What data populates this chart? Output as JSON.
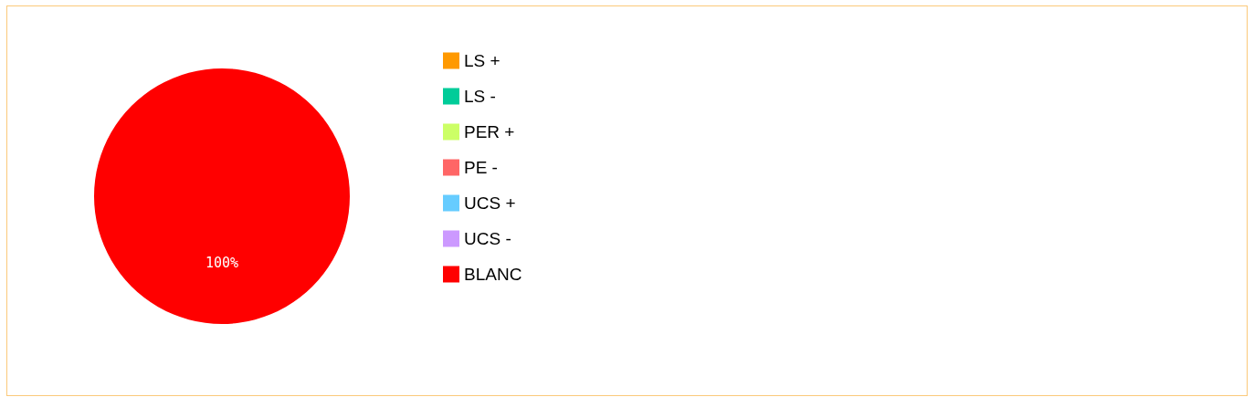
{
  "chart_data": {
    "type": "pie",
    "categories": [
      "LS +",
      "LS -",
      "PER +",
      "PE -",
      "UCS +",
      "UCS -",
      "BLANC"
    ],
    "values": [
      0,
      0,
      0,
      0,
      0,
      0,
      100
    ],
    "colors": [
      "#ff9900",
      "#00cc99",
      "#ccff66",
      "#ff6666",
      "#66ccff",
      "#cc99ff",
      "#ff0000"
    ],
    "value_labels": [
      null,
      null,
      null,
      null,
      null,
      null,
      "100%"
    ],
    "legend": "right"
  }
}
